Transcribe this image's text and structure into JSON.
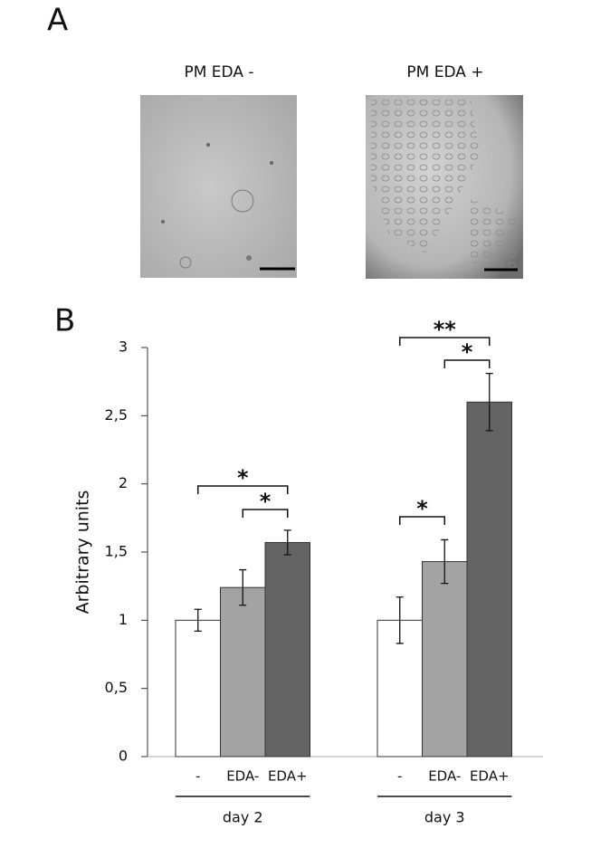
{
  "panel_a": {
    "label": "A",
    "images": [
      {
        "title": "PM EDA -"
      },
      {
        "title": "PM EDA +"
      }
    ]
  },
  "panel_b": {
    "label": "B"
  },
  "chart_data": {
    "type": "bar",
    "y_label": "Arbitrary units",
    "categories": [
      "day 2",
      "day 3"
    ],
    "series": [
      {
        "name": "-",
        "color": "#ffffff",
        "values": [
          1.0,
          1.0
        ],
        "errors": [
          0.08,
          0.17
        ]
      },
      {
        "name": "EDA-",
        "color": "#a3a3a3",
        "values": [
          1.24,
          1.43
        ],
        "errors": [
          0.13,
          0.16
        ]
      },
      {
        "name": "EDA+",
        "color": "#646464",
        "values": [
          1.57,
          2.6
        ],
        "errors": [
          0.09,
          0.21
        ]
      }
    ],
    "ylim": [
      0,
      3
    ],
    "yticks": [
      0,
      {
        "value": 0.5,
        "label": "0,5"
      },
      1,
      {
        "value": 1.5,
        "label": "1,5"
      },
      2,
      {
        "value": 2.5,
        "label": "2,5"
      },
      3
    ],
    "annotations": [
      {
        "text": "*",
        "category": "day 2",
        "between": [
          "-",
          "EDA+"
        ]
      },
      {
        "text": "*",
        "category": "day 2",
        "between": [
          "EDA-",
          "EDA+"
        ]
      },
      {
        "text": "*",
        "category": "day 3",
        "between": [
          "-",
          "EDA-"
        ]
      },
      {
        "text": "*",
        "category": "day 3",
        "between": [
          "EDA-",
          "EDA+"
        ]
      },
      {
        "text": "**",
        "category": "day 3",
        "between": [
          "-",
          "EDA+"
        ]
      }
    ]
  }
}
